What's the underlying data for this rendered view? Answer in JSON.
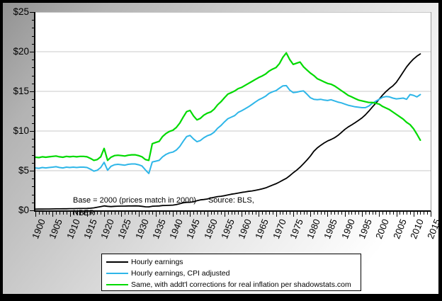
{
  "figure": {
    "annotation": {
      "base_note": "Base = 2000 (prices match in 2000)",
      "source_note": "Source: BLS,",
      "source_note_line2": "NBER"
    },
    "colors": {
      "plot_background": "#ffffff",
      "gridline": "#c8c8c8",
      "axis": "#000000",
      "chart_border": "#000000",
      "series_black": "#000000",
      "series_cyan": "#2eb6e8",
      "series_green": "#00da00"
    }
  },
  "chart_data": {
    "type": "line",
    "title": "",
    "xlabel": "",
    "ylabel": "",
    "xlim": [
      1900,
      2015
    ],
    "ylim": [
      0,
      25
    ],
    "x_major_tick_step": 5,
    "x_minor_tick_step": 1,
    "y_major_tick_step": 5,
    "y_minor_tick_step": 1,
    "grid": "horizontal",
    "legend_position": "bottom",
    "y_tick_labels": [
      "$0",
      "$5",
      "$10",
      "$15",
      "$20",
      "$25"
    ],
    "x_tick_labels": [
      "1900",
      "1905",
      "1910",
      "1915",
      "1920",
      "1925",
      "1930",
      "1935",
      "1940",
      "1945",
      "1950",
      "1955",
      "1960",
      "1965",
      "1970",
      "1975",
      "1980",
      "1985",
      "1990",
      "1995",
      "2000",
      "2005",
      "2010",
      "2015"
    ],
    "years_start": 1900,
    "years_end": 2012,
    "series": [
      {
        "name": "Hourly earnings",
        "color": "#000000",
        "line_width": 1.8,
        "values": [
          0.15,
          0.16,
          0.16,
          0.17,
          0.17,
          0.18,
          0.19,
          0.19,
          0.2,
          0.2,
          0.21,
          0.21,
          0.22,
          0.23,
          0.23,
          0.24,
          0.27,
          0.31,
          0.39,
          0.47,
          0.56,
          0.51,
          0.47,
          0.51,
          0.53,
          0.54,
          0.54,
          0.55,
          0.55,
          0.56,
          0.55,
          0.51,
          0.45,
          0.44,
          0.52,
          0.54,
          0.55,
          0.61,
          0.62,
          0.63,
          0.66,
          0.72,
          0.84,
          0.95,
          1.01,
          1.02,
          1.08,
          1.21,
          1.32,
          1.37,
          1.43,
          1.55,
          1.64,
          1.73,
          1.78,
          1.85,
          1.94,
          2.04,
          2.1,
          2.18,
          2.26,
          2.32,
          2.39,
          2.45,
          2.53,
          2.61,
          2.71,
          2.83,
          3.01,
          3.19,
          3.36,
          3.57,
          3.81,
          4.04,
          4.37,
          4.73,
          5.06,
          5.44,
          5.88,
          6.34,
          6.85,
          7.44,
          7.87,
          8.2,
          8.49,
          8.74,
          8.93,
          9.14,
          9.44,
          9.8,
          10.2,
          10.51,
          10.77,
          11.05,
          11.34,
          11.65,
          12.04,
          12.51,
          13.01,
          13.49,
          14.0,
          14.54,
          14.97,
          15.37,
          15.69,
          16.13,
          16.76,
          17.43,
          18.08,
          18.62,
          19.07,
          19.44,
          19.72
        ]
      },
      {
        "name": "Hourly earnings, CPI adjusted",
        "color": "#2eb6e8",
        "line_width": 2,
        "values": [
          5.35,
          5.3,
          5.4,
          5.35,
          5.4,
          5.45,
          5.5,
          5.4,
          5.35,
          5.45,
          5.4,
          5.45,
          5.4,
          5.45,
          5.45,
          5.4,
          5.2,
          4.95,
          5.05,
          5.4,
          6.05,
          5.05,
          5.55,
          5.75,
          5.8,
          5.75,
          5.7,
          5.8,
          5.85,
          5.85,
          5.75,
          5.6,
          5.1,
          4.65,
          6.1,
          6.2,
          6.3,
          6.75,
          7.05,
          7.25,
          7.35,
          7.6,
          8.05,
          8.7,
          9.3,
          9.45,
          9.0,
          8.65,
          8.8,
          9.15,
          9.4,
          9.55,
          9.85,
          10.35,
          10.7,
          11.15,
          11.55,
          11.75,
          11.95,
          12.35,
          12.55,
          12.8,
          13.05,
          13.35,
          13.65,
          13.95,
          14.15,
          14.4,
          14.75,
          14.95,
          15.1,
          15.4,
          15.7,
          15.72,
          15.15,
          14.85,
          14.9,
          15.0,
          15.05,
          14.65,
          14.2,
          14.0,
          13.95,
          14.0,
          13.9,
          13.85,
          13.95,
          13.8,
          13.65,
          13.55,
          13.4,
          13.25,
          13.15,
          13.05,
          13.0,
          12.95,
          12.95,
          13.15,
          13.5,
          13.75,
          14.0,
          14.25,
          14.35,
          14.3,
          14.15,
          14.05,
          14.1,
          14.15,
          14.0,
          14.6,
          14.5,
          14.3,
          14.6
        ]
      },
      {
        "name": "Same, with addt'l corrections for real inflation per shadowstats.com",
        "color": "#00da00",
        "line_width": 2.2,
        "values": [
          6.7,
          6.65,
          6.75,
          6.7,
          6.75,
          6.8,
          6.85,
          6.75,
          6.7,
          6.8,
          6.75,
          6.8,
          6.75,
          6.8,
          6.8,
          6.75,
          6.55,
          6.3,
          6.4,
          6.75,
          7.8,
          6.3,
          6.7,
          6.9,
          6.95,
          6.9,
          6.85,
          6.95,
          7.0,
          7.0,
          6.9,
          6.75,
          6.4,
          6.3,
          8.4,
          8.55,
          8.7,
          9.3,
          9.7,
          9.95,
          10.1,
          10.45,
          11.0,
          11.75,
          12.45,
          12.6,
          11.9,
          11.4,
          11.6,
          12.0,
          12.25,
          12.4,
          12.75,
          13.3,
          13.7,
          14.2,
          14.65,
          14.85,
          15.05,
          15.35,
          15.5,
          15.75,
          16.0,
          16.25,
          16.5,
          16.75,
          16.95,
          17.2,
          17.55,
          17.8,
          18.0,
          18.5,
          19.3,
          19.85,
          19.0,
          18.4,
          18.55,
          18.7,
          18.1,
          17.7,
          17.3,
          17.0,
          16.6,
          16.4,
          16.2,
          16.0,
          15.9,
          15.7,
          15.4,
          15.1,
          14.8,
          14.5,
          14.3,
          14.1,
          13.9,
          13.8,
          13.7,
          13.6,
          13.6,
          13.5,
          13.4,
          13.1,
          12.9,
          12.7,
          12.4,
          12.1,
          11.8,
          11.5,
          11.1,
          10.8,
          10.3,
          9.6,
          8.85
        ]
      }
    ]
  }
}
